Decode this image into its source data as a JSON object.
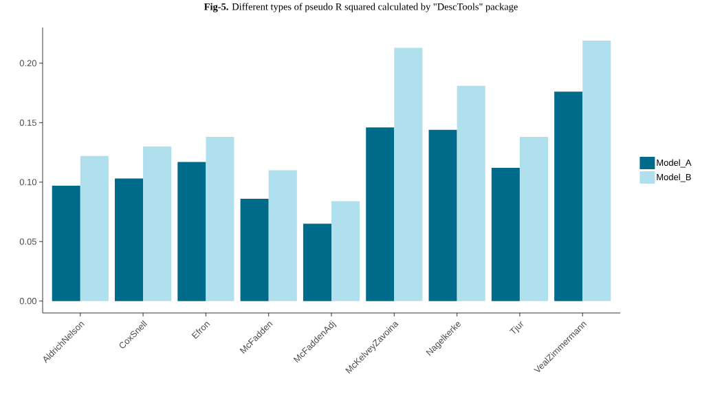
{
  "chart_data": {
    "type": "bar",
    "title": "**Fig-5.** Different types of pseudo R squared calculated by \"DescTools\" package",
    "categories": [
      "AldrichNelson",
      "CoxSnell",
      "Efron",
      "McFadden",
      "McFaddenAdj",
      "McKelveyZavoina",
      "Nagelkerke",
      "Tjur",
      "VealZimmermann"
    ],
    "series": [
      {
        "name": "Model_A",
        "color": "#006a8b",
        "values": [
          0.097,
          0.103,
          0.117,
          0.086,
          0.065,
          0.146,
          0.144,
          0.112,
          0.176
        ]
      },
      {
        "name": "Model_B",
        "color": "#b0dfee",
        "values": [
          0.122,
          0.13,
          0.138,
          0.11,
          0.084,
          0.213,
          0.181,
          0.138,
          0.219
        ]
      }
    ],
    "ylim": [
      -0.01,
      0.23
    ],
    "yticks": [
      {
        "value": 0,
        "label": "0.00"
      },
      {
        "value": 0.05,
        "label": "0.05"
      },
      {
        "value": 0.1,
        "label": "0.10"
      },
      {
        "value": 0.15,
        "label": "0.15"
      },
      {
        "value": 0.2,
        "label": "0.20"
      }
    ],
    "grid": false,
    "legend": "right"
  }
}
